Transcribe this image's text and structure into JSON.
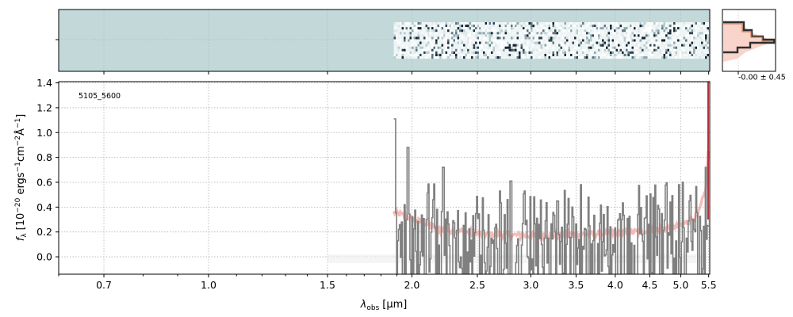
{
  "chart_data": {
    "type": "line",
    "object_id": "5105_5600",
    "xlabel_main": "λ",
    "xlabel_sub": "obs",
    "xlabel_unit": "[μm]",
    "ylabel_main": "f",
    "ylabel_sub": "λ",
    "ylabel_unit": "[10",
    "ylabel_exp1": "−20",
    "ylabel_mid": " ergs",
    "ylabel_exp2": "−1",
    "ylabel_cm": "cm",
    "ylabel_exp3": "−2",
    "ylabel_A": "Å",
    "ylabel_exp4": "−1",
    "ylabel_end": "]",
    "xscale": "log",
    "xlim": [
      0.6,
      5.52
    ],
    "ylim": [
      -0.14,
      1.41
    ],
    "xticks": [
      0.7,
      1.0,
      1.5,
      2.0,
      2.5,
      3.0,
      3.5,
      4.0,
      4.5,
      5.0,
      5.5
    ],
    "xtick_labels": [
      "0.7",
      "1.0",
      "1.5",
      "2.0",
      "2.5",
      "3.0",
      "3.5",
      "4.0",
      "4.5",
      "5.0",
      "5.5"
    ],
    "yticks": [
      0.0,
      0.2,
      0.4,
      0.6,
      0.8,
      1.0,
      1.2,
      1.4
    ],
    "ytick_labels": [
      "0.0",
      "0.2",
      "0.4",
      "0.6",
      "0.8",
      "1.0",
      "1.2",
      "1.4"
    ],
    "grid": true,
    "spectrum_range": [
      1.88,
      5.49
    ],
    "spectrum_color": "#808080",
    "error_color": "#f4a6a0",
    "spectrum_peaks": [
      {
        "x": 1.88,
        "y": 1.11
      },
      {
        "x": 1.97,
        "y": 0.88
      },
      {
        "x": 2.22,
        "y": 0.72
      },
      {
        "x": 2.8,
        "y": 0.61
      },
      {
        "x": 3.45,
        "y": 0.4
      },
      {
        "x": 3.65,
        "y": 0.48
      },
      {
        "x": 4.45,
        "y": 0.49
      },
      {
        "x": 5.15,
        "y": 0.45
      },
      {
        "x": 5.43,
        "y": 0.72
      }
    ],
    "error_anchors": [
      {
        "x": 1.88,
        "y": 0.36
      },
      {
        "x": 2.2,
        "y": 0.22
      },
      {
        "x": 2.6,
        "y": 0.18
      },
      {
        "x": 3.0,
        "y": 0.17
      },
      {
        "x": 3.5,
        "y": 0.18
      },
      {
        "x": 4.0,
        "y": 0.19
      },
      {
        "x": 4.5,
        "y": 0.21
      },
      {
        "x": 5.0,
        "y": 0.25
      },
      {
        "x": 5.3,
        "y": 0.33
      },
      {
        "x": 5.45,
        "y": 0.55
      },
      {
        "x": 5.5,
        "y": 0.92
      }
    ],
    "spike_color": "#b0303a",
    "spike_x": 5.49,
    "spectrum2d_bg": "#c3d9d9",
    "profile_label": "-0.00 ± 0.45"
  }
}
